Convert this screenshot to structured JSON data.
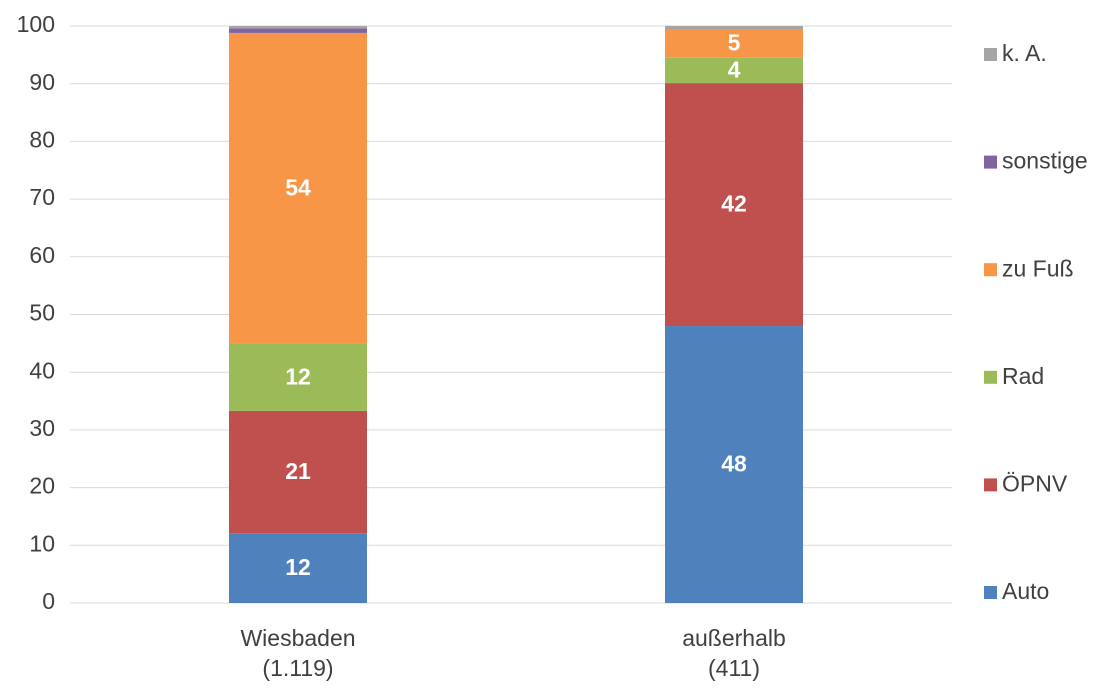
{
  "chart_data": {
    "type": "stacked_bar",
    "categories": [
      [
        "Wiesbaden",
        "(1.119)"
      ],
      [
        "außerhalb",
        "(411)"
      ]
    ],
    "series": [
      {
        "name": "Auto",
        "color": "#4f81bd",
        "values": [
          12.1,
          48.0
        ],
        "value_labels": [
          "12",
          "48"
        ]
      },
      {
        "name": "ÖPNV",
        "color": "#c0504d",
        "values": [
          21.2,
          42.1
        ],
        "value_labels": [
          "21",
          "42"
        ]
      },
      {
        "name": "Rad",
        "color": "#9bbb59",
        "values": [
          11.6,
          4.4
        ],
        "value_labels": [
          "12",
          "4"
        ]
      },
      {
        "name": "zu Fuß",
        "color": "#f79646",
        "values": [
          53.9,
          4.9
        ],
        "value_labels": [
          "54",
          "5"
        ]
      },
      {
        "name": "sonstige",
        "color": "#8064a2",
        "values": [
          0.8,
          0
        ],
        "value_labels": [
          null,
          null
        ]
      },
      {
        "name": "k. A.",
        "color": "#a5a5a5",
        "values": [
          0.4,
          0.6
        ],
        "value_labels": [
          null,
          null
        ]
      }
    ],
    "ylim": [
      0,
      100
    ],
    "yticks": [
      0,
      10,
      20,
      30,
      40,
      50,
      60,
      70,
      80,
      90,
      100
    ],
    "grid": true,
    "legend": "right"
  }
}
